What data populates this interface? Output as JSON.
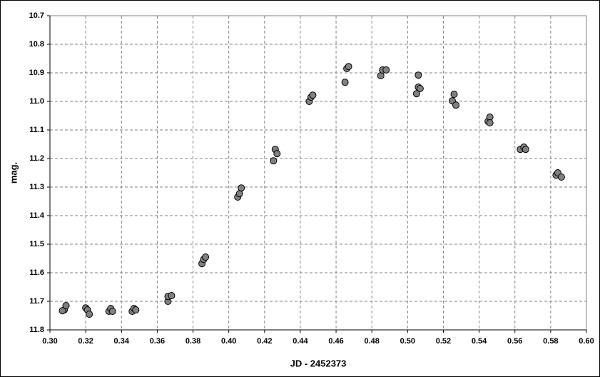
{
  "chart_data": {
    "type": "scatter",
    "x_label": "JD - 2452373",
    "y_label": "mag.",
    "xlim": [
      0.3,
      0.6
    ],
    "xticks": [
      {
        "value": 0.3,
        "label": "0.30"
      },
      0.32,
      0.34,
      0.36,
      0.38,
      {
        "value": 0.4,
        "label": "0.40"
      },
      0.42,
      0.44,
      0.46,
      0.48,
      {
        "value": 0.5,
        "label": "0.50"
      },
      0.52,
      0.54,
      0.56,
      0.58,
      {
        "value": 0.6,
        "label": "0.60"
      }
    ],
    "ylim": [
      11.8,
      10.7
    ],
    "yticks": [
      10.7,
      10.8,
      10.9,
      {
        "value": 11,
        "label": "11.0"
      },
      11.1,
      11.2,
      11.3,
      11.4,
      11.5,
      11.6,
      11.7,
      11.8
    ],
    "grid": true,
    "series": [
      {
        "color": "#808080",
        "x": [
          0.308,
          0.309,
          0.307,
          0.32,
          0.321,
          0.322,
          0.333,
          0.334,
          0.335,
          0.346,
          0.347,
          0.348,
          0.366,
          0.366,
          0.368,
          0.385,
          0.386,
          0.387,
          0.405,
          0.406,
          0.407,
          0.425,
          0.426,
          0.427,
          0.445,
          0.446,
          0.447,
          0.465,
          0.466,
          0.467,
          0.485,
          0.486,
          0.488,
          0.505,
          0.506,
          0.506,
          0.507,
          0.525,
          0.526,
          0.527,
          0.545,
          0.546,
          0.546,
          0.563,
          0.565,
          0.566,
          0.583,
          0.584,
          0.586
        ],
        "values": [
          11.73,
          11.715,
          11.733,
          11.723,
          11.73,
          11.745,
          11.735,
          11.725,
          11.735,
          11.735,
          11.725,
          11.73,
          11.7,
          11.683,
          11.68,
          11.568,
          11.553,
          11.545,
          11.335,
          11.323,
          11.303,
          11.208,
          11.168,
          11.183,
          11.0,
          10.985,
          10.978,
          10.933,
          10.885,
          10.878,
          10.91,
          10.89,
          10.89,
          10.973,
          10.95,
          10.908,
          10.955,
          10.998,
          10.975,
          11.013,
          11.07,
          11.055,
          11.075,
          11.168,
          11.16,
          11.168,
          11.258,
          11.25,
          11.265
        ]
      }
    ]
  }
}
